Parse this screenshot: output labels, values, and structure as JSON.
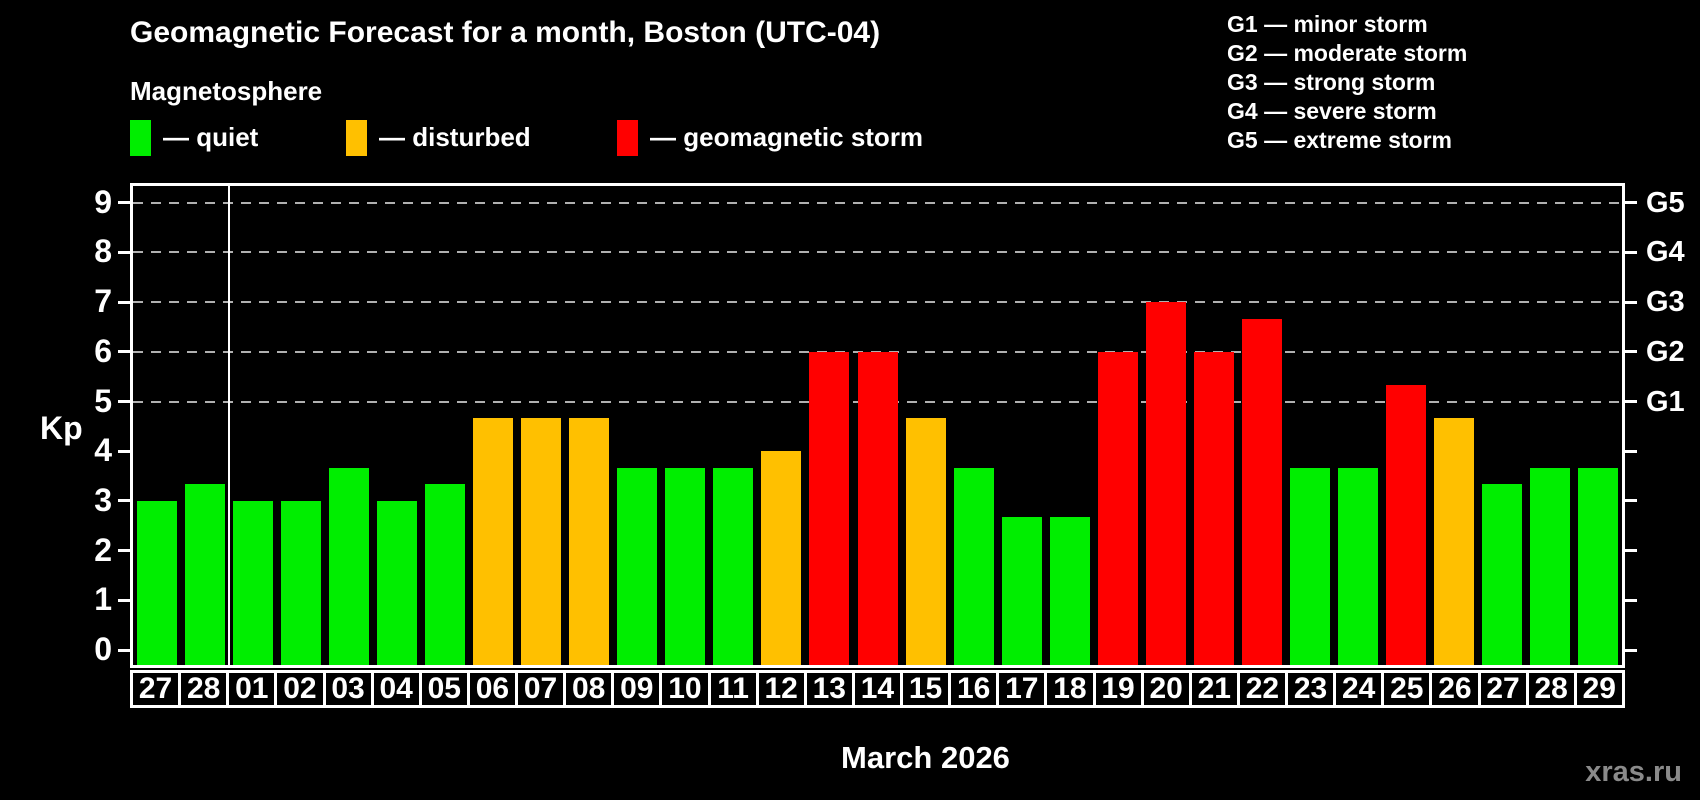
{
  "title": "Geomagnetic Forecast for a month, Boston (UTC-04)",
  "subtitle": "Magnetosphere",
  "legend": {
    "items": [
      {
        "label": "— quiet",
        "status": "quiet"
      },
      {
        "label": "— disturbed",
        "status": "disturbed"
      },
      {
        "label": "— geomagnetic storm",
        "status": "storm"
      }
    ]
  },
  "g_legend": {
    "items": [
      {
        "label": "G1 — minor storm"
      },
      {
        "label": "G2 — moderate storm"
      },
      {
        "label": "G3 — strong storm"
      },
      {
        "label": "G4 — severe storm"
      },
      {
        "label": "G5 — extreme storm"
      }
    ]
  },
  "axes": {
    "y_label": "Kp",
    "y_ticks": [
      "0",
      "1",
      "2",
      "3",
      "4",
      "5",
      "6",
      "7",
      "8",
      "9"
    ],
    "right_labels": [
      {
        "text": "G1",
        "kp": 5
      },
      {
        "text": "G2",
        "kp": 6
      },
      {
        "text": "G3",
        "kp": 7
      },
      {
        "text": "G4",
        "kp": 8
      },
      {
        "text": "G5",
        "kp": 9
      }
    ]
  },
  "x_axis_title": "March 2026",
  "watermark": "xras.ru",
  "colors": {
    "quiet": "#00ee00",
    "disturbed": "#ffc000",
    "storm": "#ff0000",
    "frame": "#ffffff",
    "grid": "#b0b0b0",
    "background": "#000000",
    "watermark": "#8a8a8a"
  },
  "chart_data": {
    "type": "bar",
    "title": "Geomagnetic Forecast for a month, Boston (UTC-04)",
    "subtitle": "Magnetosphere",
    "xlabel": "March 2026",
    "ylabel": "Kp",
    "ylim": [
      0,
      9.5
    ],
    "grid_on": true,
    "grid_kp": [
      5,
      6,
      7,
      8,
      9
    ],
    "right_axis": {
      "G1": 5,
      "G2": 6,
      "G3": 7,
      "G4": 8,
      "G5": 9
    },
    "month_boundary_after_index": 1,
    "categories": [
      "27",
      "28",
      "01",
      "02",
      "03",
      "04",
      "05",
      "06",
      "07",
      "08",
      "09",
      "10",
      "11",
      "12",
      "13",
      "14",
      "15",
      "16",
      "17",
      "18",
      "19",
      "20",
      "21",
      "22",
      "23",
      "24",
      "25",
      "26",
      "27",
      "28",
      "29"
    ],
    "values": [
      3,
      3.33,
      3,
      3,
      3.67,
      3,
      3.33,
      4.67,
      4.67,
      4.67,
      3.67,
      3.67,
      3.67,
      4,
      6,
      6,
      4.67,
      3.67,
      2.67,
      2.67,
      6,
      7,
      6,
      6.67,
      3.67,
      3.67,
      5.33,
      4.67,
      3.33,
      3.67,
      3.67
    ],
    "statuses": [
      "quiet",
      "quiet",
      "quiet",
      "quiet",
      "quiet",
      "quiet",
      "quiet",
      "disturbed",
      "disturbed",
      "disturbed",
      "quiet",
      "quiet",
      "quiet",
      "disturbed",
      "storm",
      "storm",
      "disturbed",
      "quiet",
      "quiet",
      "quiet",
      "storm",
      "storm",
      "storm",
      "storm",
      "quiet",
      "quiet",
      "storm",
      "disturbed",
      "quiet",
      "quiet",
      "quiet"
    ]
  }
}
